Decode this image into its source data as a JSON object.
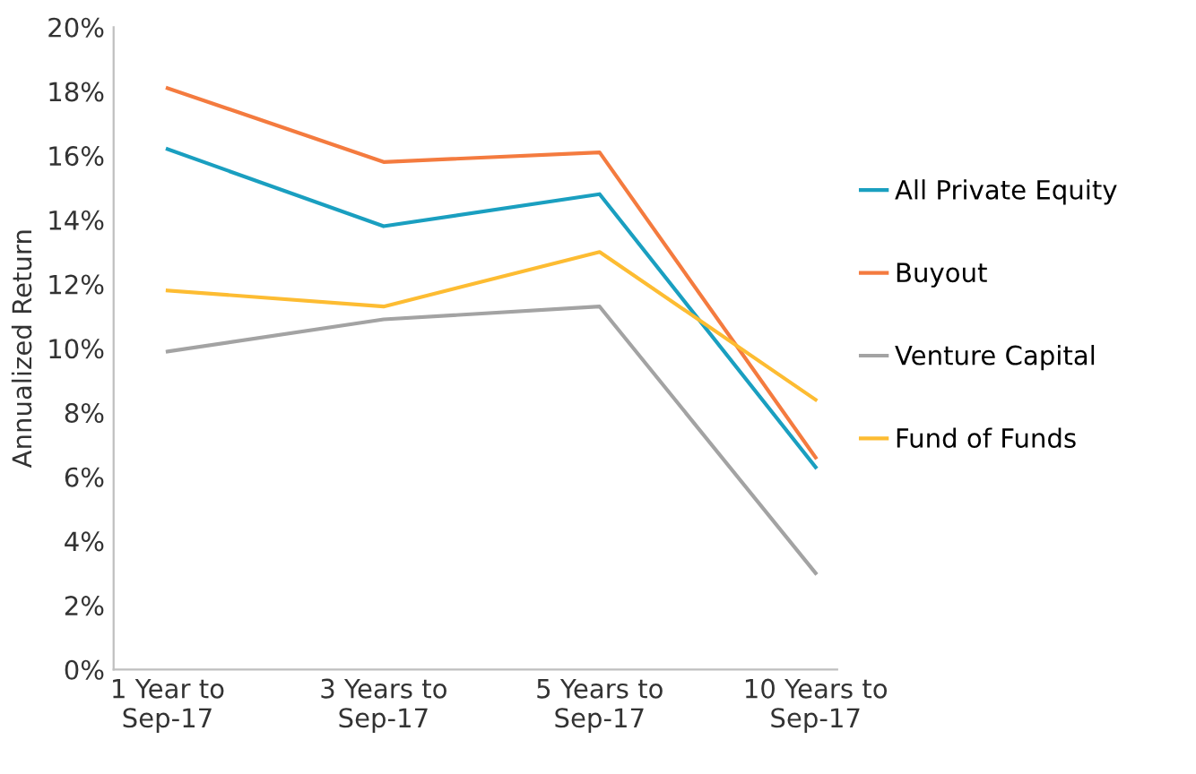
{
  "chart_data": {
    "type": "line",
    "ylabel": "Annualized Return",
    "categories": [
      "1 Year to\nSep-17",
      "3 Years to\nSep-17",
      "5 Years to\nSep-17",
      "10 Years to\nSep-17"
    ],
    "series": [
      {
        "name": "All Private Equity",
        "color": "#1a9fc0",
        "values": [
          16.2,
          13.8,
          14.8,
          6.3
        ]
      },
      {
        "name": "Buyout",
        "color": "#f47b3f",
        "values": [
          18.1,
          15.8,
          16.1,
          6.6
        ]
      },
      {
        "name": "Venture Capital",
        "color": "#a3a3a3",
        "values": [
          9.9,
          10.9,
          11.3,
          3.0
        ]
      },
      {
        "name": "Fund of Funds",
        "color": "#fdbc32",
        "values": [
          11.8,
          11.3,
          13.0,
          8.4
        ]
      }
    ],
    "ylim": [
      0,
      20
    ],
    "yticks": [
      {
        "value": 0,
        "label": "0%"
      },
      {
        "value": 2,
        "label": "2%"
      },
      {
        "value": 4,
        "label": "4%"
      },
      {
        "value": 6,
        "label": "6%"
      },
      {
        "value": 8,
        "label": "8%"
      },
      {
        "value": 10,
        "label": "10%"
      },
      {
        "value": 12,
        "label": "12%"
      },
      {
        "value": 14,
        "label": "14%"
      },
      {
        "value": 16,
        "label": "16%"
      },
      {
        "value": 18,
        "label": "18%"
      },
      {
        "value": 20,
        "label": "20%"
      }
    ],
    "grid": false,
    "legend": "right",
    "marker": "none",
    "line_style": "solid"
  }
}
